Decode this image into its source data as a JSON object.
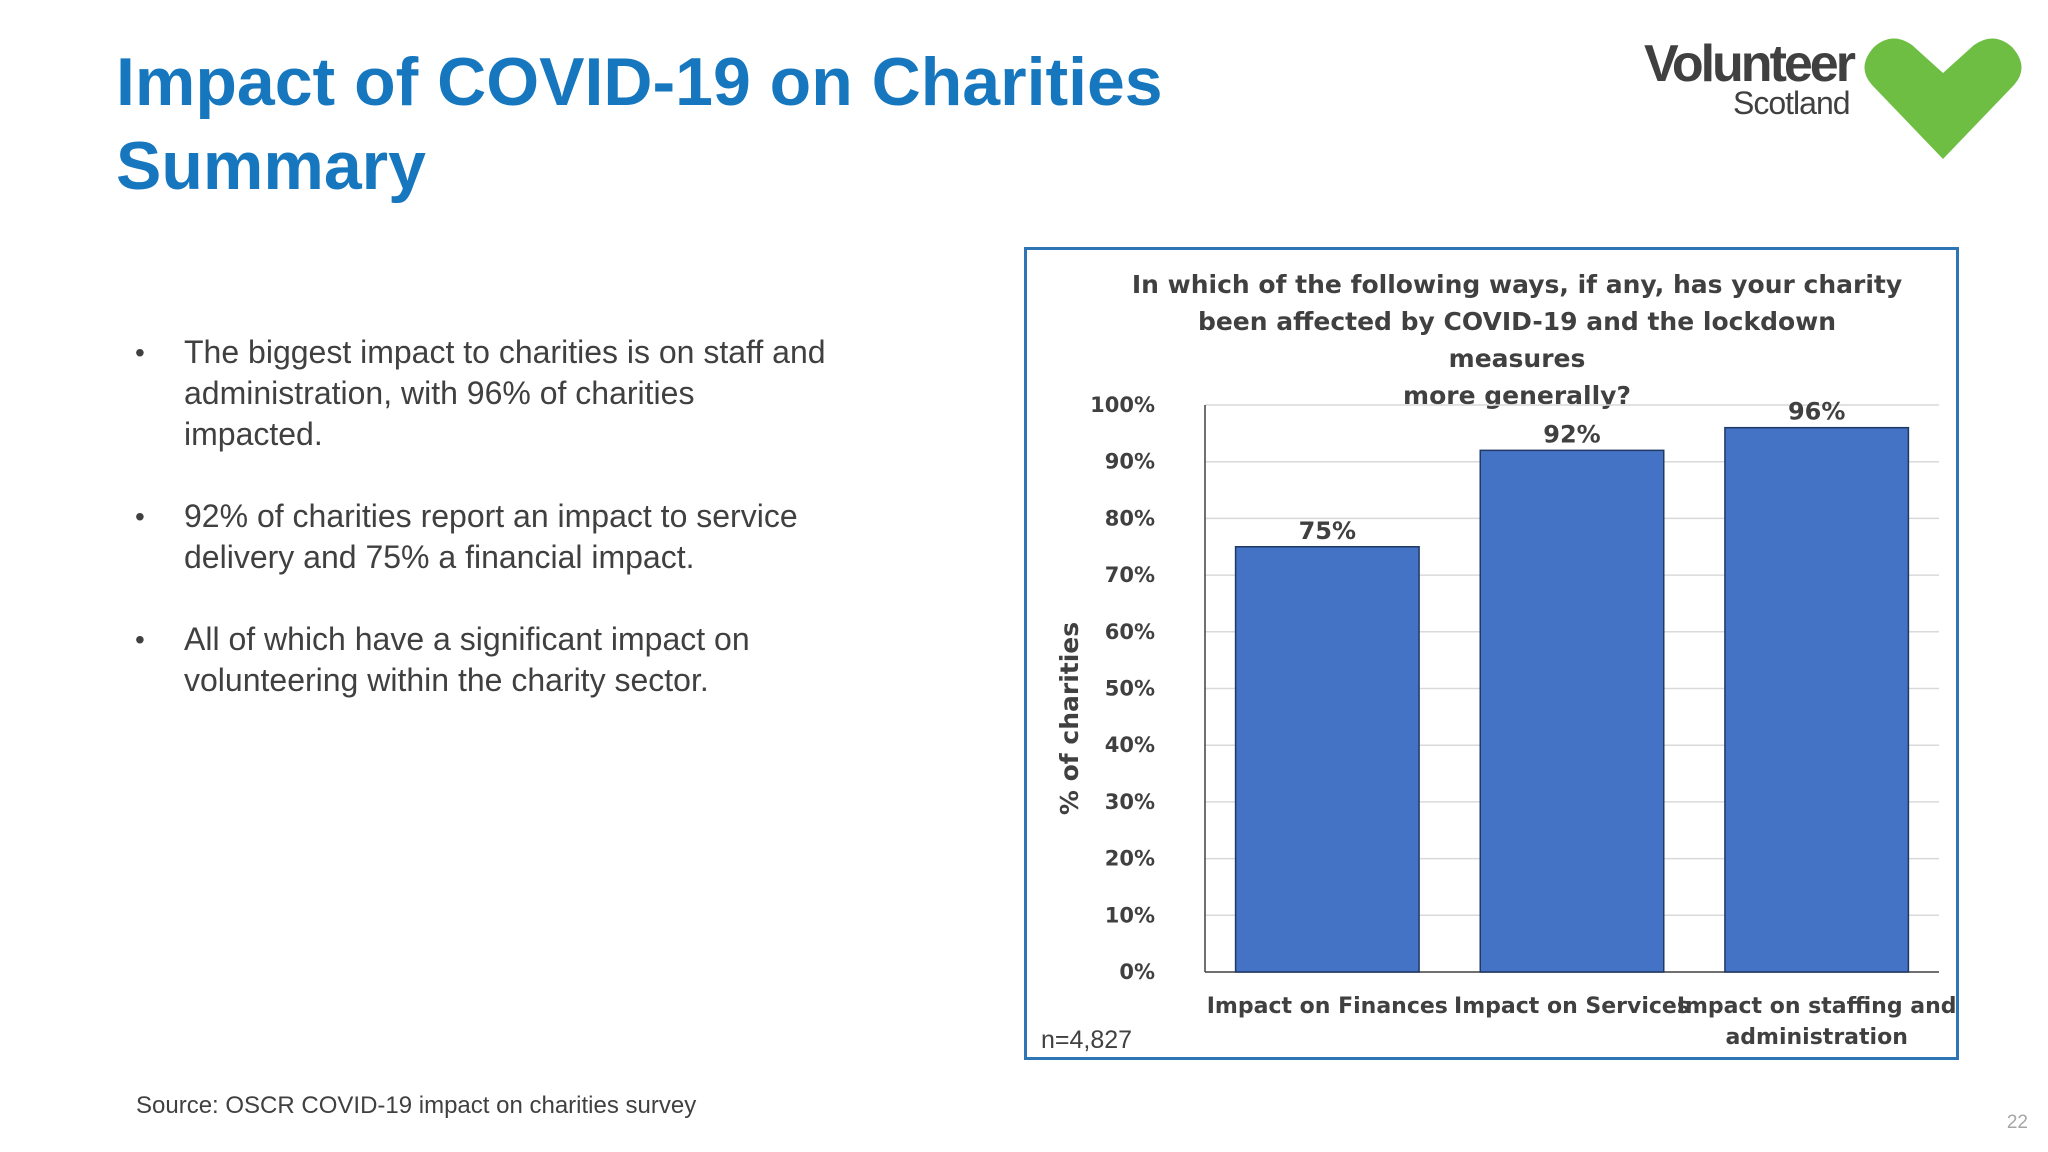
{
  "slide": {
    "title_lines": [
      "Impact of COVID-19 on Charities",
      "Summary"
    ],
    "logo": {
      "word1": "Volunteer",
      "word2": "Scotland",
      "heart_color": "#6fbe44"
    },
    "bullets": [
      [
        "The biggest impact to charities is on staff and",
        "administration, with 96% of charities",
        "impacted."
      ],
      [
        "92% of charities report an impact to service",
        "delivery and 75% a financial impact."
      ],
      [
        "All of which have a significant impact on",
        "volunteering within the charity sector."
      ]
    ],
    "bullet_char": "•",
    "source": "Source: OSCR COVID-19 impact on charities survey",
    "page_number": "22",
    "sample_size": "n=4,827"
  },
  "chart_data": {
    "type": "bar",
    "title_lines": [
      "In which of the following ways, if any, has your charity",
      "been affected by COVID-19 and the lockdown measures",
      "more generally?"
    ],
    "categories": [
      [
        "Impact on Finances"
      ],
      [
        "Impact on Services"
      ],
      [
        "Impact on staffing and",
        "administration"
      ]
    ],
    "values": [
      75,
      92,
      96
    ],
    "data_labels": [
      "75%",
      "92%",
      "96%"
    ],
    "ylabel": "% of charities",
    "xlabel": "",
    "ylim": [
      0,
      100
    ],
    "yticks": [
      "0%",
      "10%",
      "20%",
      "30%",
      "40%",
      "50%",
      "60%",
      "70%",
      "80%",
      "90%",
      "100%"
    ],
    "grid": true,
    "bar_color": "#4472c4"
  }
}
